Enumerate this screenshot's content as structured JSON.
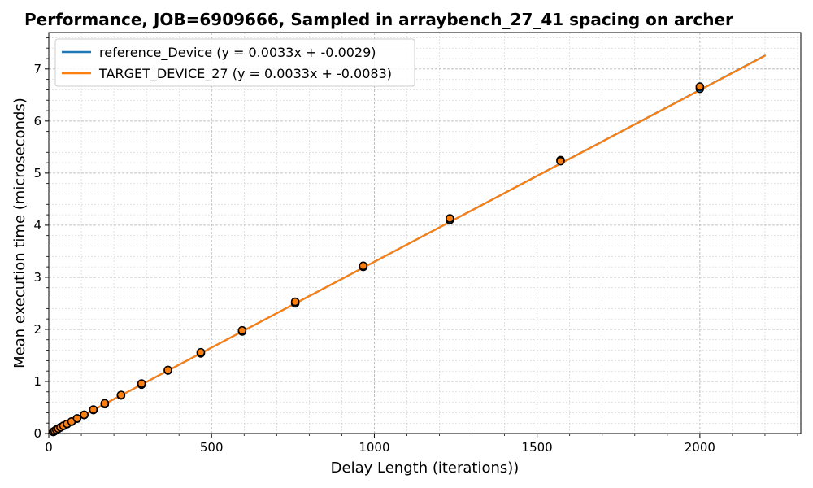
{
  "chart_data": {
    "type": "scatter",
    "title": "Performance, JOB=6909666, Sampled in arraybench_27_41 spacing on archer",
    "xlabel": "Delay Length (iterations))",
    "ylabel": "Mean execution time (microseconds)",
    "xlim": [
      0,
      2310
    ],
    "ylim": [
      0,
      7.7
    ],
    "xticks": [
      0,
      500,
      1000,
      1500,
      2000
    ],
    "yticks": [
      0,
      1,
      2,
      3,
      4,
      5,
      6,
      7
    ],
    "grid": true,
    "legend_position": "top-left",
    "series": [
      {
        "name": "reference_Device (y = 0.0033x + -0.0029)",
        "color": "#1f77b4",
        "fit": {
          "slope": 0.0033,
          "intercept": -0.0029,
          "x_range": [
            0,
            2200
          ]
        },
        "x": [
          14,
          18,
          23,
          29,
          36,
          45,
          56,
          70,
          87,
          109,
          137,
          172,
          222,
          285,
          366,
          467,
          594,
          757,
          966,
          1232,
          1572,
          2000
        ],
        "y": [
          0.03,
          0.045,
          0.07,
          0.09,
          0.115,
          0.145,
          0.18,
          0.225,
          0.285,
          0.355,
          0.45,
          0.565,
          0.73,
          0.94,
          1.21,
          1.54,
          1.96,
          2.5,
          3.2,
          4.1,
          5.25,
          6.62
        ]
      },
      {
        "name": "TARGET_DEVICE_27 (y = 0.0033x + -0.0083)",
        "color": "#ff7f0e",
        "fit": {
          "slope": 0.0033,
          "intercept": -0.0083,
          "x_range": [
            0,
            2200
          ]
        },
        "x": [
          14,
          18,
          23,
          29,
          36,
          45,
          56,
          70,
          87,
          109,
          137,
          172,
          222,
          285,
          366,
          467,
          594,
          757,
          966,
          1232,
          1572,
          2000
        ],
        "y": [
          0.035,
          0.05,
          0.075,
          0.095,
          0.12,
          0.15,
          0.185,
          0.23,
          0.29,
          0.36,
          0.46,
          0.58,
          0.74,
          0.96,
          1.22,
          1.56,
          1.98,
          2.53,
          3.22,
          4.13,
          5.23,
          6.66
        ]
      }
    ]
  }
}
